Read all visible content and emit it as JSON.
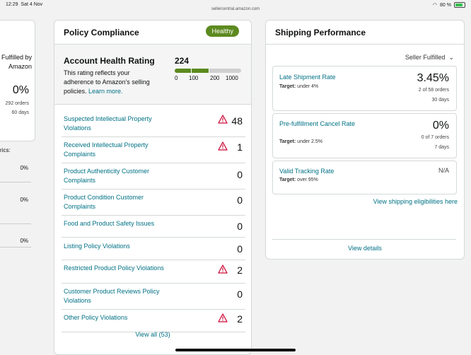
{
  "statusbar": {
    "time": "12:29",
    "date": "Sat 4 Nov",
    "url": "sellercentral.amazon.com",
    "battery": "80 %"
  },
  "left_card": {
    "fulfilled_label": "Fulfilled by Amazon",
    "percent": "0%",
    "orders": "292 orders",
    "days": "60 days",
    "metrics_label": "rics:",
    "values": [
      "0%",
      "0%",
      "0%"
    ]
  },
  "policy": {
    "title": "Policy Compliance",
    "badge": "Healthy",
    "ahr": {
      "title": "Account Health Rating",
      "desc_text": "This rating reflects your adherence to Amazon's selling policies.",
      "learn_more": "Learn more.",
      "score": "224",
      "score_value": 224,
      "ticks": [
        "0",
        "100",
        "200",
        "1000"
      ]
    },
    "violations": [
      {
        "label": "Suspected Intellectual Property Violations",
        "count": "48",
        "warn": true
      },
      {
        "label": "Received Intellectual Property Complaints",
        "count": "1",
        "warn": true
      },
      {
        "label": "Product Authenticity Customer Complaints",
        "count": "0",
        "warn": false
      },
      {
        "label": "Product Condition Customer Complaints",
        "count": "0",
        "warn": false
      },
      {
        "label": "Food and Product Safety Issues",
        "count": "0",
        "warn": false
      },
      {
        "label": "Listing Policy Violations",
        "count": "0",
        "warn": false
      },
      {
        "label": "Restricted Product Policy Violations",
        "count": "2",
        "warn": true
      },
      {
        "label": "Customer Product Reviews Policy Violations",
        "count": "0",
        "warn": false
      },
      {
        "label": "Other Policy Violations",
        "count": "2",
        "warn": true
      }
    ],
    "view_all": "View all (53)"
  },
  "shipping": {
    "title": "Shipping Performance",
    "filter": "Seller Fulfilled",
    "metrics": [
      {
        "title": "Late Shipment Rate",
        "target": "under 4%",
        "value": "3.45%",
        "detail1": "2 of 58 orders",
        "detail2": "30 days"
      },
      {
        "title": "Pre-fulfillment Cancel Rate",
        "target": "under 2.5%",
        "value": "0%",
        "detail1": "0 of 7 orders",
        "detail2": "7 days"
      },
      {
        "title": "Valid Tracking Rate",
        "target": "over 95%",
        "value": "N/A",
        "detail1": "",
        "detail2": ""
      }
    ],
    "target_prefix": "Target:",
    "view_eligibilities": "View shipping eligibilities here",
    "view_details": "View details"
  },
  "colors": {
    "link": "#007185",
    "healthy": "#5c8a1f",
    "warn": "#cc0c39"
  }
}
